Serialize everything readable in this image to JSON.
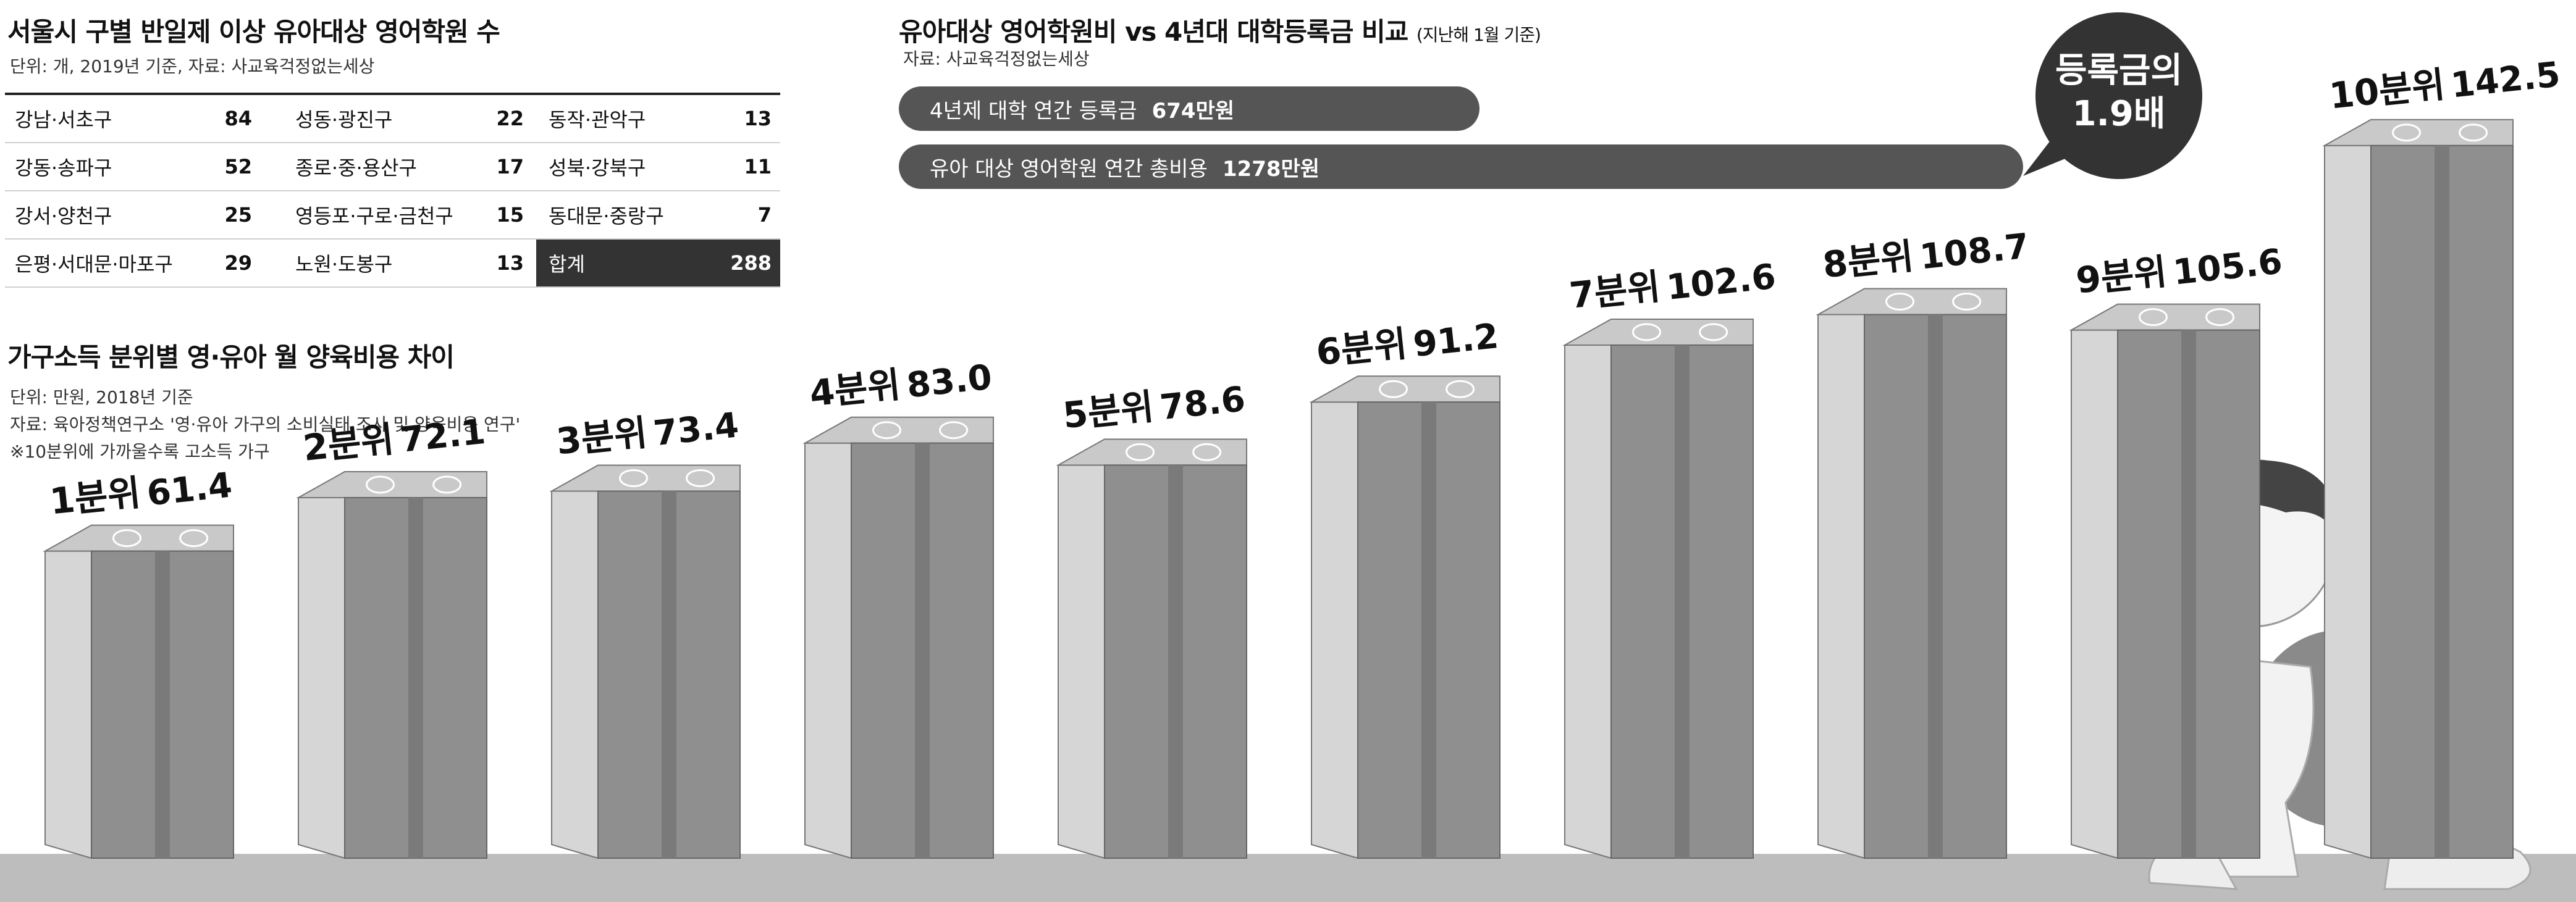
{
  "district_table": {
    "title": "서울시 구별 반일제 이상 유아대상 영어학원 수",
    "unit_note": "단위: 개, 2019년 기준, 자료: 사교육걱정없는세상",
    "rows": [
      [
        {
          "name": "강남·서초구",
          "value": "84"
        },
        {
          "name": "성동·광진구",
          "value": "22"
        },
        {
          "name": "동작·관악구",
          "value": "13"
        }
      ],
      [
        {
          "name": "강동·송파구",
          "value": "52"
        },
        {
          "name": "종로·중·용산구",
          "value": "17"
        },
        {
          "name": "성북·강북구",
          "value": "11"
        }
      ],
      [
        {
          "name": "강서·양천구",
          "value": "25"
        },
        {
          "name": "영등포·구로·금천구",
          "value": "15"
        },
        {
          "name": "동대문·중랑구",
          "value": "7"
        }
      ],
      [
        {
          "name": "은평·서대문·마포구",
          "value": "29"
        },
        {
          "name": "노원·도봉구",
          "value": "13"
        },
        {
          "name": "합계",
          "value": "288"
        }
      ]
    ]
  },
  "comparison": {
    "title": "유아대상 영어학원비 vs 4년대 대학등록금 비교",
    "title_note": "(지난해 1월 기준)",
    "source": "자료: 사교육걱정없는세상",
    "bars": [
      {
        "label": "4년제 대학 연간 등록금",
        "value": "674만원",
        "amount": 674
      },
      {
        "label": "유아 대상 영어학원 연간 총비용",
        "value": "1278만원",
        "amount": 1278
      }
    ],
    "bubble_line1": "등록금의",
    "bubble_line2": "1.9배"
  },
  "colors": {
    "bar_front": "#8f8f8f",
    "bar_side": "#d6d6d6",
    "bar_top": "#c9c9c9",
    "stripe": "#7a7a7a",
    "floor": "#bdbdbd",
    "pill": "#555555",
    "bubble": "#333333"
  },
  "chart_data": {
    "type": "bar",
    "title": "가구소득 분위별 영·유아 월 양육비용 차이",
    "notes": [
      "단위: 만원, 2018년 기준",
      "자료: 육아정책연구소 '영·유아 가구의 소비실태 조사 및 양육비용 연구'",
      "※10분위에 가까울수록 고소득 가구"
    ],
    "categories": [
      "1분위",
      "2분위",
      "3분위",
      "4분위",
      "5분위",
      "6분위",
      "7분위",
      "8분위",
      "9분위",
      "10분위"
    ],
    "values": [
      61.4,
      72.1,
      73.4,
      83.0,
      78.6,
      91.2,
      102.6,
      108.7,
      105.6,
      142.5
    ],
    "value_labels": [
      "61.4",
      "72.1",
      "73.4",
      "83.0",
      "78.6",
      "91.2",
      "102.6",
      "108.7",
      "105.6",
      "142.5"
    ],
    "ylim": [
      0,
      150
    ]
  }
}
